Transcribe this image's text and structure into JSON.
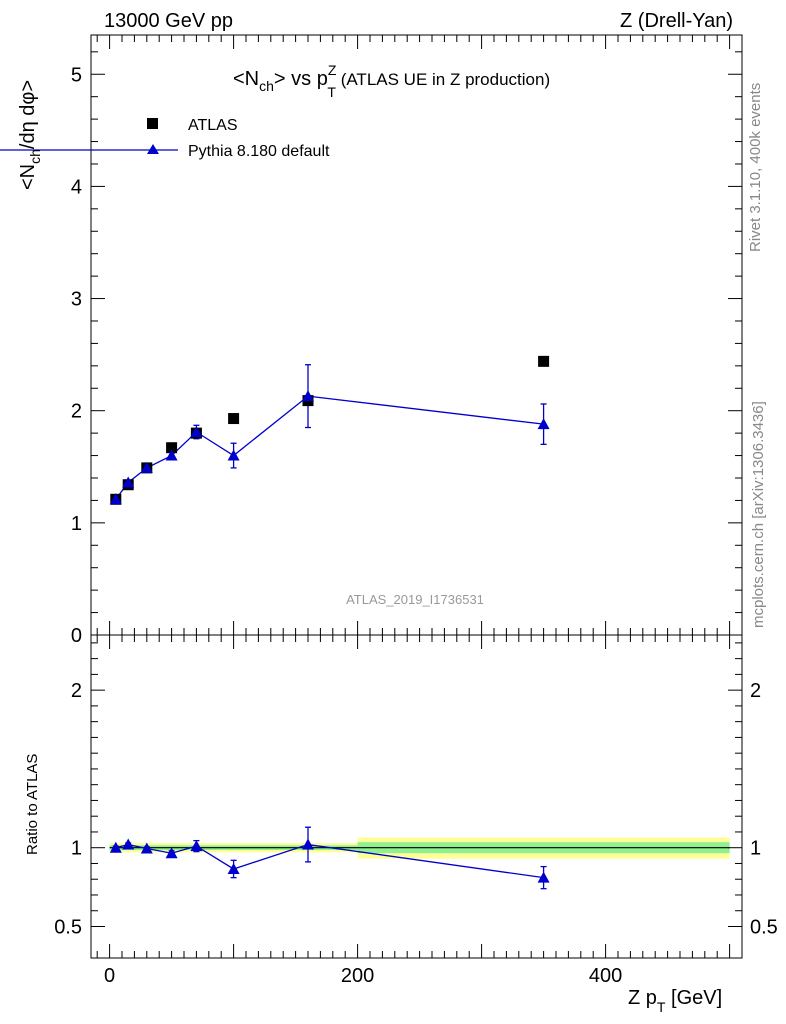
{
  "header": {
    "left": "13000 GeV pp",
    "right": "Z (Drell-Yan)"
  },
  "title": {
    "main_prefix": "<N",
    "main_sub": "ch",
    "main_mid": "> vs p",
    "main_sup": "Z",
    "main_sub2": "T",
    "main_suffix": " (ATLAS UE in Z production)"
  },
  "side": {
    "rivet": "Rivet 3.1.10,  400k events",
    "mcplots": "mcplots.cern.ch [arXiv:1306.3436]"
  },
  "watermark": "ATLAS_2019_I1736531",
  "legend": {
    "data_label": "ATLAS",
    "mc_label": "Pythia 8.180 default"
  },
  "axes": {
    "ylabel_main": "<N_ch/dη dφ>",
    "ylabel_ratio": "Ratio to ATLAS",
    "xlabel": "Z p_T [GeV]"
  },
  "colors": {
    "data": "#000000",
    "mc": "#0000cc",
    "band_inner": "#90f090",
    "band_outer": "#ffff99"
  },
  "chart_data": [
    {
      "type": "scatter",
      "panel": "main",
      "x_range": [
        -15,
        510
      ],
      "ylim": [
        0,
        5.35
      ],
      "y_ticks": [
        0,
        1,
        2,
        3,
        4,
        5
      ],
      "x": [
        5,
        15,
        30,
        50,
        70,
        100,
        160,
        350
      ],
      "series": [
        {
          "name": "ATLAS",
          "marker": "square",
          "values": [
            1.21,
            1.34,
            1.49,
            1.67,
            1.8,
            1.93,
            2.09,
            2.44
          ]
        },
        {
          "name": "Pythia 8.180 default",
          "marker": "triangle",
          "values": [
            1.21,
            1.36,
            1.49,
            1.6,
            1.81,
            1.6,
            2.13,
            1.88
          ],
          "err_lo": [
            0.02,
            0.02,
            0.02,
            0.03,
            0.06,
            0.11,
            0.28,
            0.18
          ],
          "err_hi": [
            0.02,
            0.02,
            0.02,
            0.03,
            0.06,
            0.11,
            0.28,
            0.18
          ]
        }
      ]
    },
    {
      "type": "scatter",
      "panel": "ratio",
      "x_range": [
        -15,
        510
      ],
      "ylim": [
        0.3,
        2.35
      ],
      "y_ticks": [
        0.5,
        1,
        2
      ],
      "x_ticks": [
        0,
        200,
        400
      ],
      "x": [
        5,
        15,
        30,
        50,
        70,
        100,
        160,
        350
      ],
      "series": [
        {
          "name": "Pythia 8.180 default",
          "values": [
            1.0,
            1.02,
            0.995,
            0.965,
            1.01,
            0.865,
            1.02,
            0.81
          ],
          "err_lo": [
            0.01,
            0.01,
            0.01,
            0.015,
            0.035,
            0.055,
            0.11,
            0.07
          ],
          "err_hi": [
            0.01,
            0.01,
            0.01,
            0.015,
            0.035,
            0.055,
            0.11,
            0.07
          ]
        }
      ],
      "band": [
        {
          "x0": 0,
          "x1": 200,
          "inner": [
            0.985,
            1.015
          ],
          "outer": [
            0.97,
            1.03
          ]
        },
        {
          "x0": 200,
          "x1": 500,
          "inner": [
            0.965,
            1.035
          ],
          "outer": [
            0.93,
            1.065
          ]
        }
      ]
    }
  ]
}
